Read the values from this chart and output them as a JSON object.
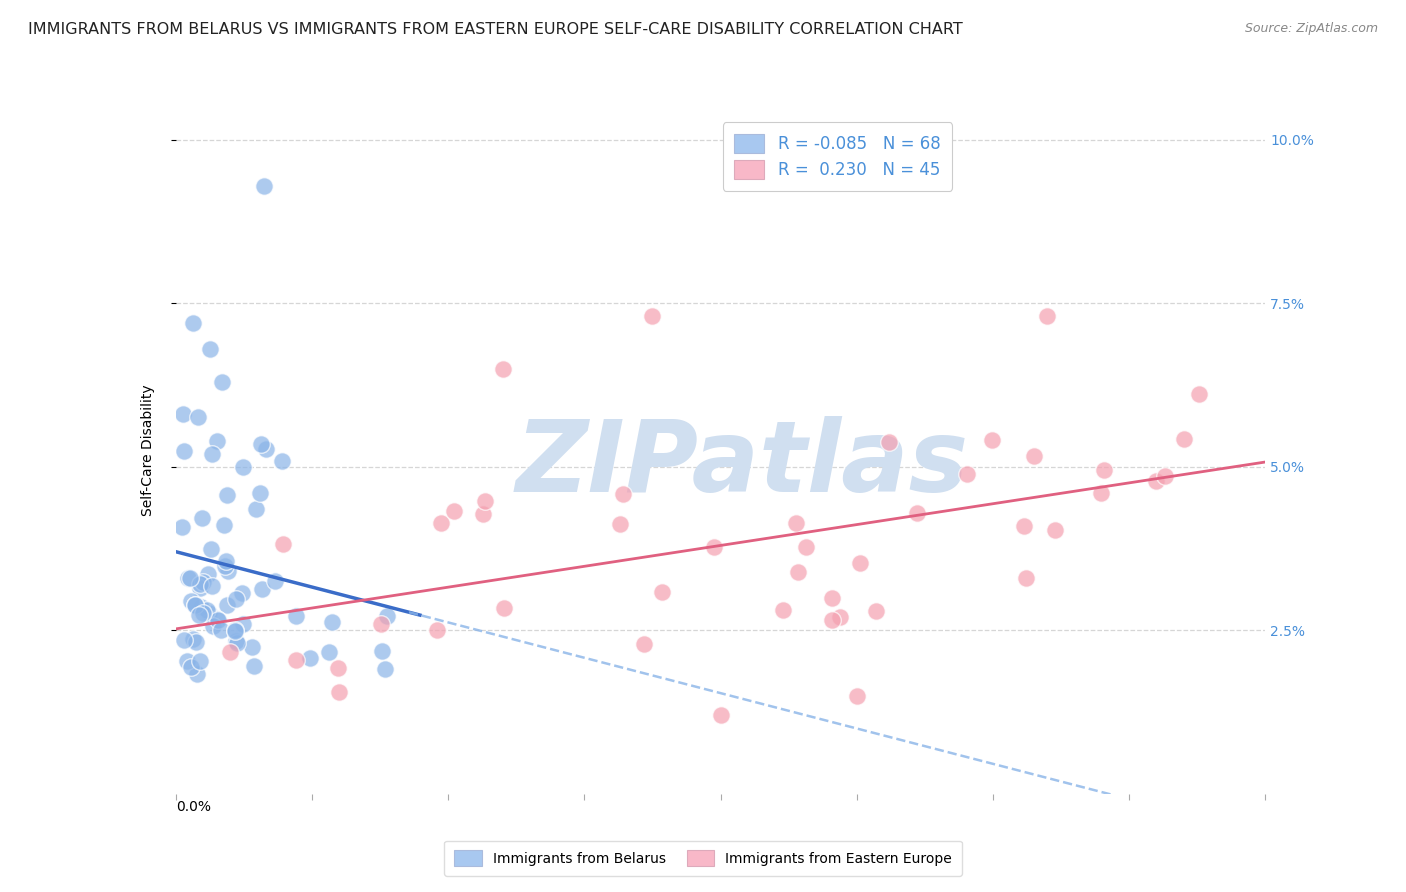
{
  "title": "IMMIGRANTS FROM BELARUS VS IMMIGRANTS FROM EASTERN EUROPE SELF-CARE DISABILITY CORRELATION CHART",
  "source": "Source: ZipAtlas.com",
  "ylabel": "Self-Care Disability",
  "legend_label1": "R = -0.085   N = 68",
  "legend_label2": "R =  0.230   N = 45",
  "legend_bottom1": "Immigrants from Belarus",
  "legend_bottom2": "Immigrants from Eastern Europe",
  "color_blue": "#8ab4e8",
  "color_blue_dark": "#3a6cc8",
  "color_pink": "#f4a0b0",
  "color_pink_dark": "#e06080",
  "color_legend_blue": "#a8c8f0",
  "color_legend_pink": "#f8b8c8",
  "background": "#ffffff",
  "grid_color": "#cccccc",
  "right_tick_color": "#4a90d9",
  "title_fontsize": 11.5,
  "source_fontsize": 9,
  "axis_label_fontsize": 10,
  "legend_fontsize": 12,
  "xlim": [
    0.0,
    0.4
  ],
  "ylim": [
    0.0,
    0.105
  ],
  "yticks": [
    0.025,
    0.05,
    0.075,
    0.1
  ],
  "ytick_labels": [
    "2.5%",
    "5.0%",
    "7.5%",
    "10.0%"
  ],
  "watermark": "ZIPatlas",
  "watermark_color": "#d0dff0",
  "watermark_fontsize": 72
}
